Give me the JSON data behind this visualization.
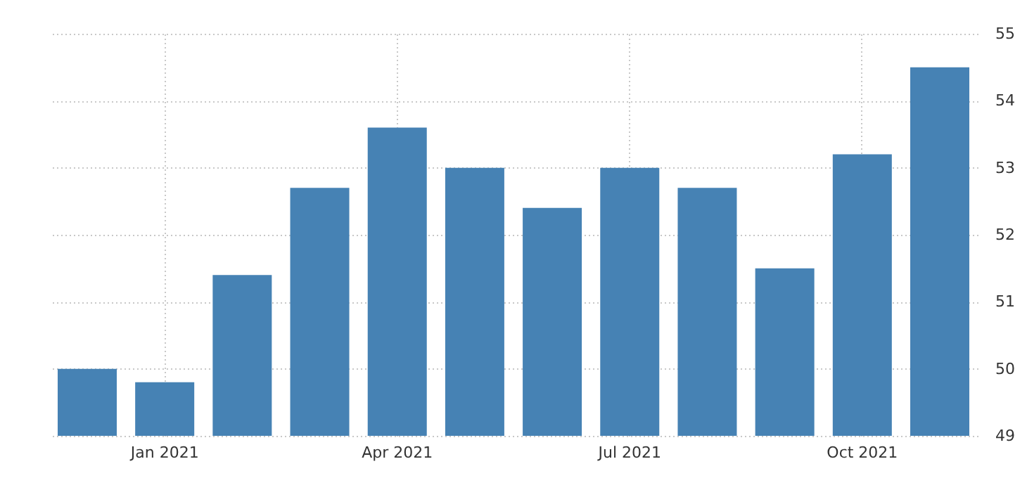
{
  "chart_data": {
    "type": "bar",
    "categories": [
      null,
      "Jan 2021",
      null,
      null,
      "Apr 2021",
      null,
      null,
      "Jul 2021",
      null,
      null,
      "Oct 2021",
      null
    ],
    "values": [
      50.0,
      49.8,
      51.4,
      52.7,
      53.6,
      53.0,
      52.4,
      53.0,
      52.7,
      51.5,
      53.2,
      54.5
    ],
    "color": "#4682b4",
    "ylim": [
      49,
      55
    ],
    "yticks": [
      49,
      50,
      51,
      52,
      53,
      54,
      55
    ],
    "grid": true
  }
}
